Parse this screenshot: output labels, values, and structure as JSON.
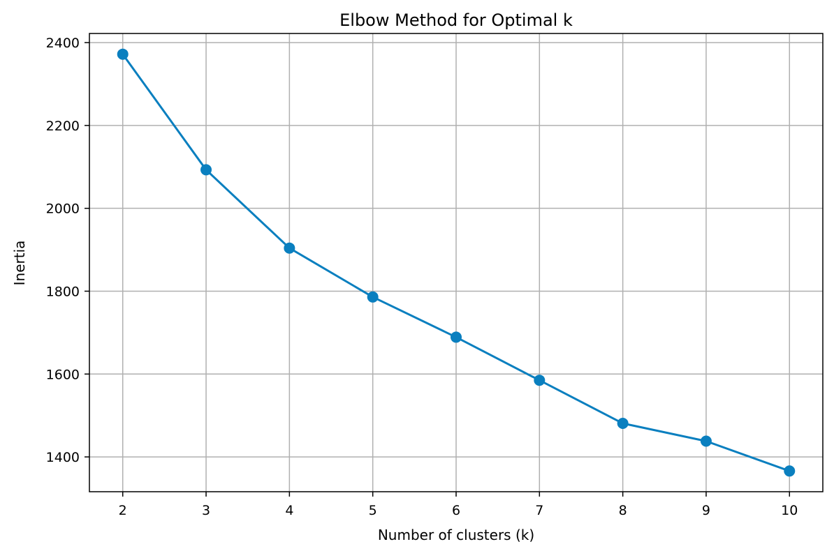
{
  "chart_data": {
    "type": "line",
    "title": "Elbow Method for Optimal k",
    "xlabel": "Number of clusters (k)",
    "ylabel": "Inertia",
    "x": [
      2,
      3,
      4,
      5,
      6,
      7,
      8,
      9,
      10
    ],
    "series": [
      {
        "values": [
          2372,
          2093,
          1904,
          1786,
          1689,
          1585,
          1481,
          1438,
          1366
        ],
        "color": "#0a7fbf",
        "marker": "circle"
      }
    ],
    "xticks": [
      "2",
      "3",
      "4",
      "5",
      "6",
      "7",
      "8",
      "9",
      "10"
    ],
    "yticks": [
      "1400",
      "1600",
      "1800",
      "2000",
      "2200",
      "2400"
    ],
    "xlim": [
      1.6,
      10.4
    ],
    "ylim": [
      1316,
      2422
    ],
    "grid": true,
    "legend": "none"
  }
}
